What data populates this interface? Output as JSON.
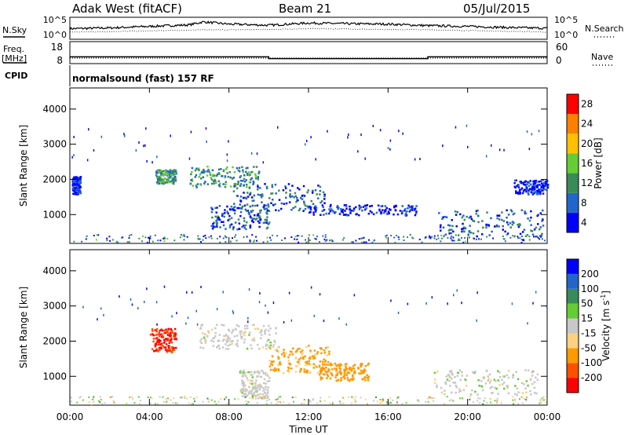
{
  "header": {
    "station": "Adak West (fitACF)",
    "beam": "Beam 21",
    "date": "05/Jul/2015"
  },
  "left_labels": {
    "nsky": "N.Sky",
    "freq": "Freq.",
    "freq_unit": "[MHz]",
    "cpid": "CPID"
  },
  "right_labels": {
    "nsearch": "N.Search",
    "nave": "Nave"
  },
  "cpid_text": "normalsound (fast) 157 RF",
  "chart_data": [
    {
      "type": "line",
      "name": "noise",
      "y_ticks": [
        "10^5",
        "10^0"
      ],
      "y2_ticks": [
        "10^5",
        "10^0"
      ],
      "x": [
        0,
        2,
        4,
        6,
        6.7,
        8,
        10,
        12,
        14,
        16,
        18,
        20,
        22,
        24
      ],
      "series": [
        {
          "name": "N.Sky",
          "values": [
            2.4,
            2.6,
            3.0,
            3.4,
            4.2,
            3.6,
            3.3,
            3.9,
            3.7,
            3.6,
            3.2,
            3.0,
            2.7,
            2.5
          ]
        },
        {
          "name": "N.Search",
          "values": [
            1.5,
            1.6,
            1.8,
            2.0,
            2.1,
            2.1,
            2.2,
            2.4,
            2.3,
            2.2,
            2.1,
            1.9,
            1.7,
            1.5
          ]
        }
      ]
    },
    {
      "type": "line",
      "name": "frequency and nave",
      "y_ticks": [
        "18",
        "8"
      ],
      "y2_ticks": [
        "60",
        "0"
      ],
      "x": [
        0,
        10,
        10,
        18,
        18,
        24
      ],
      "series": [
        {
          "name": "Freq.",
          "values": [
            11,
            11,
            10,
            10,
            11,
            11
          ]
        },
        {
          "name": "Nave",
          "values": [
            5,
            5,
            5,
            5,
            5,
            5
          ]
        }
      ]
    },
    {
      "type": "heatmap",
      "name": "power",
      "ylabel": "Slant Range [km]",
      "y_ticks": [
        "1000",
        "2000",
        "3000",
        "4000"
      ],
      "ylim": [
        180,
        4600
      ],
      "colorbar_label": "Power [dB]",
      "colorbar_ticks": [
        "4",
        "8",
        "12",
        "16",
        "20",
        "24",
        "28"
      ],
      "colorbar_colors": [
        "#0000ff",
        "#2266cc",
        "#3a8a5a",
        "#66cc33",
        "#ffc000",
        "#ff8000",
        "#ff0000"
      ],
      "regions": [
        {
          "t": [
            0.1,
            0.5
          ],
          "r": [
            1600,
            2100
          ],
          "level": 1
        },
        {
          "t": [
            4.3,
            5.3
          ],
          "r": [
            1900,
            2300
          ],
          "level": 3
        },
        {
          "t": [
            6.0,
            9.5
          ],
          "r": [
            1800,
            2400
          ],
          "level": 3
        },
        {
          "t": [
            8.2,
            12.8
          ],
          "r": [
            1100,
            1900
          ],
          "level": 2
        },
        {
          "t": [
            7.0,
            10.0
          ],
          "r": [
            600,
            1300
          ],
          "level": 2
        },
        {
          "t": [
            12.0,
            17.5
          ],
          "r": [
            1000,
            1300
          ],
          "level": 1
        },
        {
          "t": [
            18.5,
            23.8
          ],
          "r": [
            400,
            1200
          ],
          "level": 2
        },
        {
          "t": [
            22.3,
            24.0
          ],
          "r": [
            1600,
            2000
          ],
          "level": 1
        }
      ]
    },
    {
      "type": "heatmap",
      "name": "velocity",
      "ylabel": "Slant Range [km]",
      "xlabel": "Time UT",
      "x_ticks": [
        "00:00",
        "04:00",
        "08:00",
        "12:00",
        "16:00",
        "20:00",
        "00:00"
      ],
      "y_ticks": [
        "1000",
        "2000",
        "3000",
        "4000"
      ],
      "ylim": [
        180,
        4600
      ],
      "colorbar_label": "Velocity [m s",
      "colorbar_label_sup": "-1",
      "colorbar_label_end": "]",
      "colorbar_ticks": [
        "-200",
        "-100",
        "-50",
        "-15",
        "15",
        "50",
        "100",
        "200"
      ],
      "colorbar_colors": [
        "#ff0000",
        "#ff5000",
        "#ff9900",
        "#ffd080",
        "#c8c8c8",
        "#66cc33",
        "#3a8a5a",
        "#2266cc",
        "#0000ff"
      ],
      "regions": [
        {
          "t": [
            4.0,
            5.3
          ],
          "r": [
            1700,
            2400
          ],
          "v": -200
        },
        {
          "t": [
            6.5,
            10.5
          ],
          "r": [
            1800,
            2500
          ],
          "v": 0
        },
        {
          "t": [
            10.0,
            13.0
          ],
          "r": [
            1100,
            1900
          ],
          "v": -60
        },
        {
          "t": [
            12.5,
            15.0
          ],
          "r": [
            900,
            1400
          ],
          "v": -80
        },
        {
          "t": [
            18.3,
            23.5
          ],
          "r": [
            500,
            1200
          ],
          "v": 0
        },
        {
          "t": [
            8.5,
            10.0
          ],
          "r": [
            400,
            1200
          ],
          "v": 0
        }
      ]
    }
  ]
}
